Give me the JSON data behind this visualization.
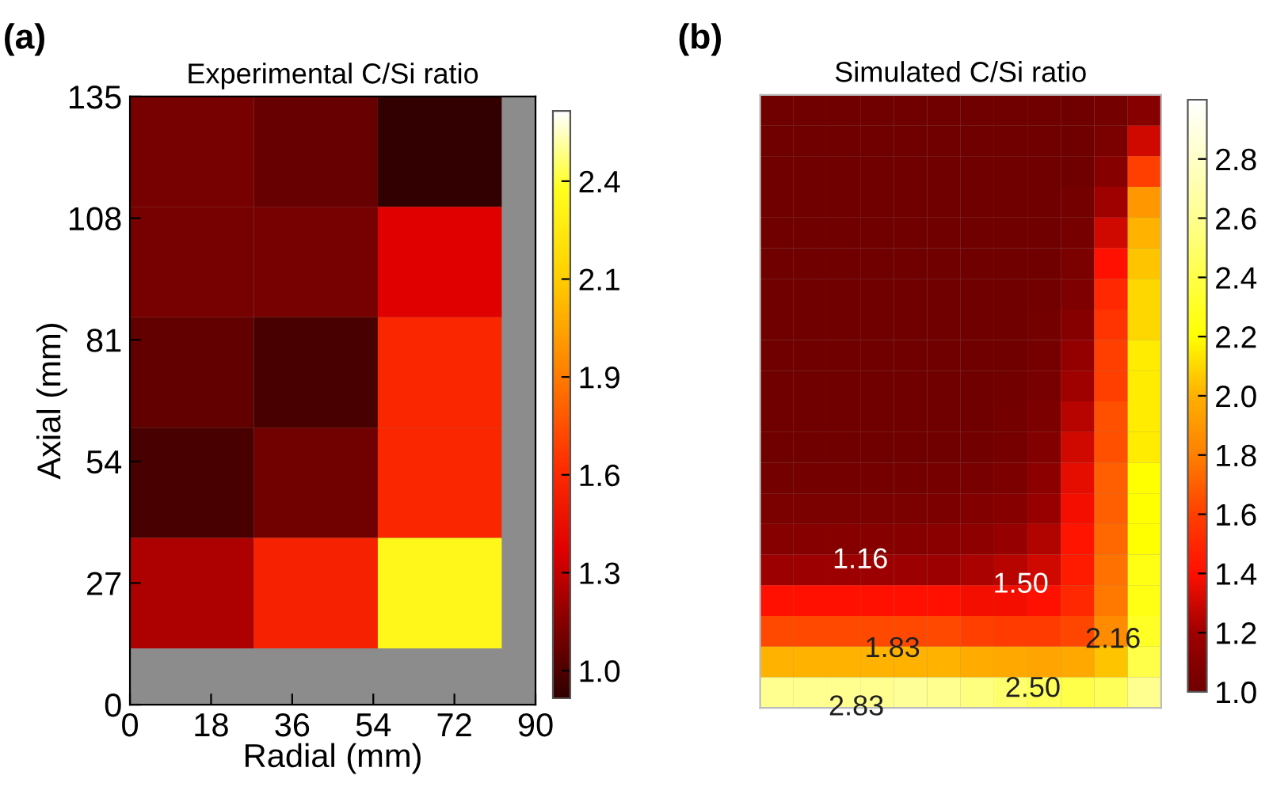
{
  "chart_data": [
    {
      "type": "heatmap",
      "title": "Experimental C/Si ratio",
      "xlabel": "Radial (mm)",
      "ylabel": "Axial (mm)",
      "annotations": [
        "(a)"
      ],
      "x": [
        13.75,
        41.25,
        68.75
      ],
      "y": [
        122.75,
        98.25,
        73.75,
        49.25,
        24.75
      ],
      "cells": [
        [
          1.1,
          1.06,
          0.93
        ],
        [
          1.1,
          1.1,
          1.35
        ],
        [
          1.05,
          0.98,
          1.55
        ],
        [
          0.98,
          1.09,
          1.55
        ],
        [
          1.23,
          1.52,
          2.35
        ]
      ],
      "xlim": [
        0,
        90
      ],
      "xticks": [
        0,
        18,
        36,
        54,
        72,
        90
      ],
      "ylim": [
        0,
        135
      ],
      "yticks": [
        0,
        27,
        54,
        81,
        108,
        135
      ],
      "clim": [
        0.92,
        2.62
      ],
      "cticks": [
        {
          "value": 1.0,
          "label": "1.0"
        },
        {
          "value": 1.2833,
          "label": "1.3"
        },
        {
          "value": 1.5667,
          "label": "1.6"
        },
        {
          "value": 1.85,
          "label": "1.9"
        },
        {
          "value": 2.1333,
          "label": "2.1"
        },
        {
          "value": 2.4167,
          "label": "2.4"
        }
      ]
    },
    {
      "type": "heatmap",
      "title": "Simulated C/Si ratio",
      "annotations": [
        "(b)",
        "1.16",
        "1.50",
        "1.83",
        "2.16",
        "2.50",
        "2.83"
      ],
      "tick_labels": false,
      "categories": [
        null,
        null,
        null,
        null,
        null,
        null,
        null,
        null,
        null,
        null,
        null,
        null
      ],
      "y_categories": [
        null,
        null,
        null,
        null,
        null,
        null,
        null,
        null,
        null,
        null,
        null,
        null,
        null,
        null,
        null,
        null,
        null,
        null,
        null,
        null
      ],
      "cells": [
        [
          1.0,
          1.0,
          1.0,
          1.0,
          1.0,
          1.0,
          1.0,
          1.0,
          1.0,
          1.0,
          1.02,
          1.1
        ],
        [
          1.0,
          1.0,
          1.0,
          1.0,
          1.0,
          1.0,
          1.0,
          1.0,
          1.0,
          1.0,
          1.05,
          1.3
        ],
        [
          1.0,
          1.0,
          1.0,
          1.0,
          1.0,
          1.0,
          1.0,
          1.0,
          1.0,
          1.0,
          1.1,
          1.6
        ],
        [
          1.0,
          1.0,
          1.0,
          1.0,
          1.0,
          1.0,
          1.0,
          1.0,
          1.0,
          1.02,
          1.2,
          1.9
        ],
        [
          1.0,
          1.0,
          1.0,
          1.0,
          1.0,
          1.0,
          1.0,
          1.0,
          1.0,
          1.03,
          1.3,
          2.0
        ],
        [
          1.0,
          1.0,
          1.0,
          1.0,
          1.0,
          1.0,
          1.0,
          1.0,
          1.0,
          1.05,
          1.4,
          2.05
        ],
        [
          1.0,
          1.0,
          1.0,
          1.0,
          1.0,
          1.0,
          1.0,
          1.0,
          1.01,
          1.07,
          1.5,
          2.1
        ],
        [
          1.0,
          1.0,
          1.0,
          1.0,
          1.0,
          1.0,
          1.0,
          1.0,
          1.02,
          1.1,
          1.55,
          2.1
        ],
        [
          1.0,
          1.0,
          1.0,
          1.0,
          1.0,
          1.0,
          1.0,
          1.0,
          1.03,
          1.15,
          1.6,
          2.15
        ],
        [
          1.0,
          1.0,
          1.0,
          1.0,
          1.0,
          1.0,
          1.0,
          1.01,
          1.04,
          1.2,
          1.6,
          2.15
        ],
        [
          1.0,
          1.0,
          1.0,
          1.0,
          1.0,
          1.0,
          1.0,
          1.02,
          1.06,
          1.25,
          1.65,
          2.15
        ],
        [
          1.0,
          1.0,
          1.0,
          1.0,
          1.0,
          1.0,
          1.01,
          1.03,
          1.08,
          1.3,
          1.65,
          2.15
        ],
        [
          1.02,
          1.02,
          1.02,
          1.02,
          1.02,
          1.03,
          1.04,
          1.06,
          1.12,
          1.35,
          1.7,
          2.2
        ],
        [
          1.05,
          1.05,
          1.05,
          1.05,
          1.05,
          1.06,
          1.08,
          1.1,
          1.17,
          1.38,
          1.7,
          2.2
        ],
        [
          1.1,
          1.1,
          1.1,
          1.1,
          1.1,
          1.11,
          1.13,
          1.16,
          1.24,
          1.42,
          1.72,
          2.2
        ],
        [
          1.19,
          1.19,
          1.19,
          1.19,
          1.19,
          1.19,
          1.22,
          1.25,
          1.3,
          1.45,
          1.75,
          2.25
        ],
        [
          1.4,
          1.4,
          1.4,
          1.4,
          1.4,
          1.4,
          1.38,
          1.38,
          1.4,
          1.5,
          1.78,
          2.25
        ],
        [
          1.63,
          1.63,
          1.63,
          1.63,
          1.63,
          1.63,
          1.6,
          1.58,
          1.58,
          1.62,
          1.85,
          2.3
        ],
        [
          2.0,
          2.0,
          2.0,
          2.0,
          2.0,
          2.0,
          1.98,
          1.97,
          1.95,
          1.97,
          2.05,
          2.4
        ],
        [
          2.6,
          2.6,
          2.6,
          2.6,
          2.62,
          2.6,
          2.55,
          2.5,
          2.45,
          2.4,
          2.45,
          2.6
        ]
      ],
      "clim": [
        1.0,
        3.0
      ],
      "cticks": [
        {
          "value": 1.0,
          "label": "1.0"
        },
        {
          "value": 1.2,
          "label": "1.2"
        },
        {
          "value": 1.4,
          "label": "1.4"
        },
        {
          "value": 1.6,
          "label": "1.6"
        },
        {
          "value": 1.8,
          "label": "1.8"
        },
        {
          "value": 2.0,
          "label": "2.0"
        },
        {
          "value": 2.2,
          "label": "2.2"
        },
        {
          "value": 2.4,
          "label": "2.4"
        },
        {
          "value": 2.6,
          "label": "2.6"
        },
        {
          "value": 2.8,
          "label": "2.8"
        }
      ]
    }
  ]
}
